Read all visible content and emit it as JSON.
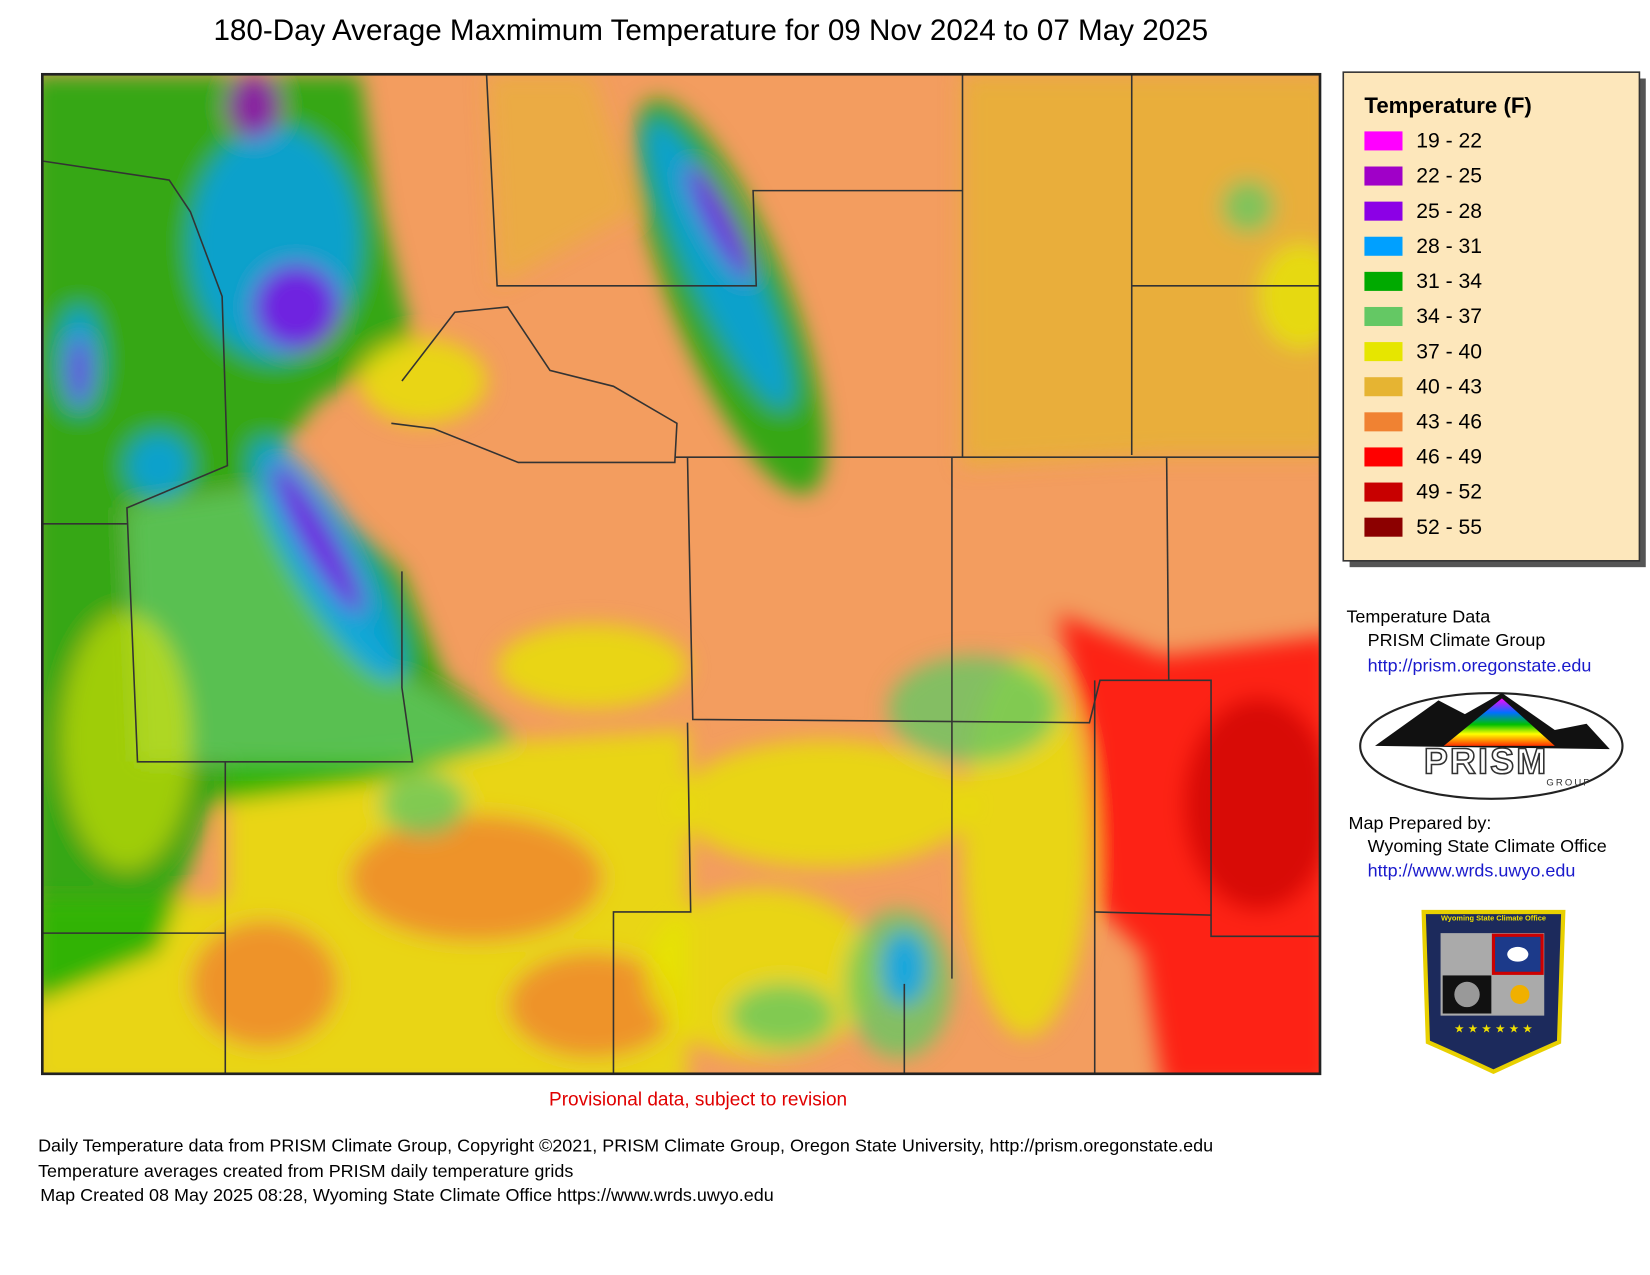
{
  "title": "180-Day Average Maxmimum Temperature for 09 Nov 2024 to 07 May 2025",
  "legend": {
    "title": "Temperature (F)",
    "items": [
      {
        "label": "19 - 22",
        "color": "#ff00ff"
      },
      {
        "label": "22 - 25",
        "color": "#a000c8"
      },
      {
        "label": "25 - 28",
        "color": "#8c00e6"
      },
      {
        "label": "28 - 31",
        "color": "#00a0ff"
      },
      {
        "label": "31 - 34",
        "color": "#00aa00"
      },
      {
        "label": "34 - 37",
        "color": "#64c864"
      },
      {
        "label": "37 - 40",
        "color": "#e6e600"
      },
      {
        "label": "40 - 43",
        "color": "#e6b432"
      },
      {
        "label": "43 - 46",
        "color": "#f08232"
      },
      {
        "label": "46 - 49",
        "color": "#ff0000"
      },
      {
        "label": "49 - 52",
        "color": "#c80000"
      },
      {
        "label": "52 - 55",
        "color": "#8c0000"
      }
    ]
  },
  "credits": {
    "data_heading": "Temperature Data",
    "data_source": "PRISM Climate Group",
    "data_url": "http://prism.oregonstate.edu",
    "prepared_heading": "Map Prepared by:",
    "prepared_by": "Wyoming State Climate Office",
    "prepared_url": "http://www.wrds.uwyo.edu"
  },
  "logos": {
    "prism": "PRISM",
    "prism_sub": "GROUP",
    "wsco": "Wyoming State Climate Office"
  },
  "note": "Provisional data, subject to revision",
  "footer": [
    "Daily Temperature data from PRISM Climate Group, Copyright ©2021, PRISM Climate Group, Oregon State University, http://prism.oregonstate.edu",
    "Temperature averages created from PRISM daily temperature grids",
    "Map Created 08 May 2025 08:28, Wyoming State Climate Office https://www.wrds.uwyo.edu"
  ]
}
